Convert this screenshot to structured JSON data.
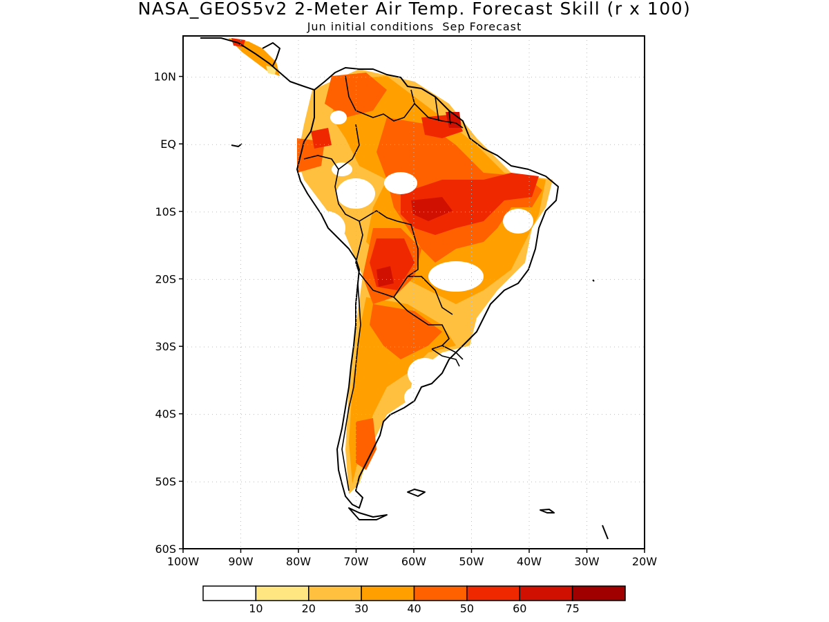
{
  "title": "NASA_GEOS5v2 2-Meter Air Temp. Forecast Skill (r x 100)",
  "subtitle": "Jun initial conditions  Sep Forecast",
  "map": {
    "lon_range": [
      -100,
      -20
    ],
    "lat_range": [
      -60,
      16
    ],
    "lon_ticks": [
      "100W",
      "90W",
      "80W",
      "70W",
      "60W",
      "50W",
      "40W",
      "30W",
      "20W"
    ],
    "lat_ticks": [
      "10N",
      "EQ",
      "10S",
      "20S",
      "30S",
      "40S",
      "50S",
      "60S"
    ],
    "grid": "dotted"
  },
  "colorbar": {
    "colors": [
      "#ffffff",
      "#ffe680",
      "#ffc040",
      "#ffa000",
      "#ff6000",
      "#f02800",
      "#d01000",
      "#a00000"
    ],
    "labels": [
      "10",
      "20",
      "30",
      "40",
      "50",
      "60",
      "75"
    ]
  }
}
